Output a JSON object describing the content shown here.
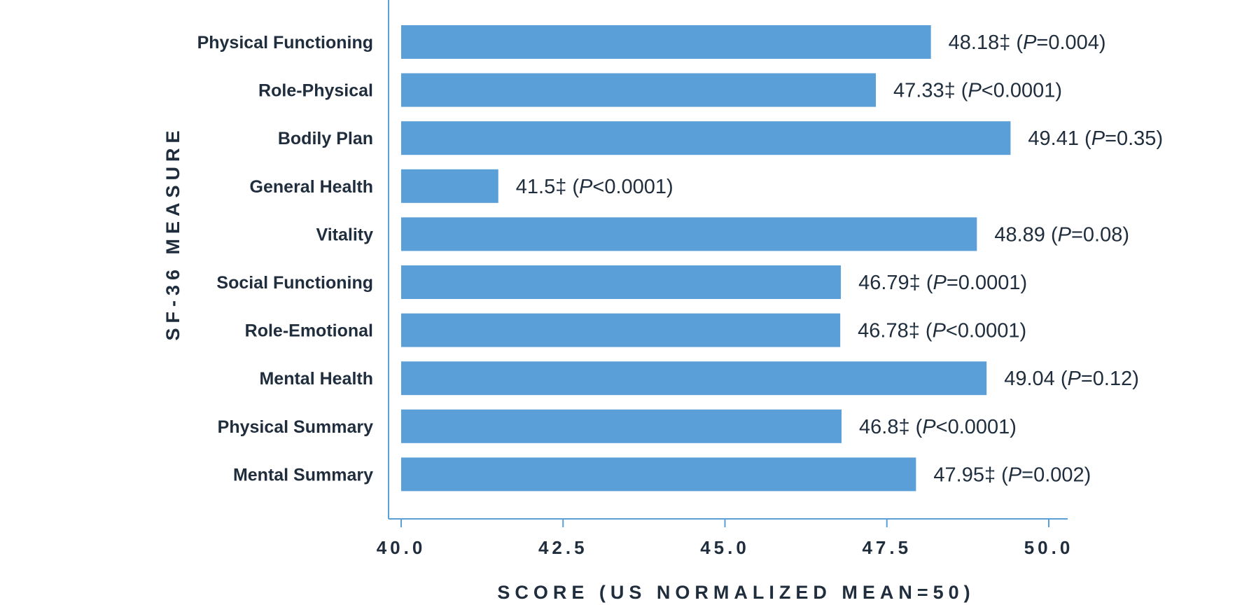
{
  "chart_data": {
    "type": "bar",
    "orientation": "horizontal",
    "categories": [
      "Physical Functioning",
      "Role-Physical",
      "Bodily Plan",
      "General Health",
      "Vitality",
      "Social Functioning",
      "Role-Emotional",
      "Mental Health",
      "Physical Summary",
      "Mental Summary"
    ],
    "values": [
      48.18,
      47.33,
      49.41,
      41.5,
      48.89,
      46.79,
      46.78,
      49.04,
      46.8,
      47.95
    ],
    "data_labels": [
      {
        "value": "48.18‡",
        "p": "=0.004"
      },
      {
        "value": "47.33‡",
        "p": "<0.0001"
      },
      {
        "value": "49.41",
        "p": "=0.35"
      },
      {
        "value": "41.5‡",
        "p": "<0.0001"
      },
      {
        "value": "48.89",
        "p": "=0.08"
      },
      {
        "value": "46.79‡",
        "p": "=0.0001"
      },
      {
        "value": "46.78‡",
        "p": "<0.0001"
      },
      {
        "value": "49.04",
        "p": "=0.12"
      },
      {
        "value": "46.8‡",
        "p": "<0.0001"
      },
      {
        "value": "47.95‡",
        "p": "=0.002"
      }
    ],
    "xlabel": "SCORE (US NORMALIZED MEAN=50)",
    "ylabel": "SF-36 MEASURE",
    "xlim": [
      40.0,
      50.3
    ],
    "xticks": [
      "40.0",
      "42.5",
      "45.0",
      "47.5",
      "50.0"
    ],
    "xtick_values": [
      40.0,
      42.5,
      45.0,
      47.5,
      50.0
    ],
    "grid": false,
    "colors": {
      "bar": "#5b9fd9",
      "axis": "#5b9fd9",
      "text": "#1f2d3d"
    }
  }
}
